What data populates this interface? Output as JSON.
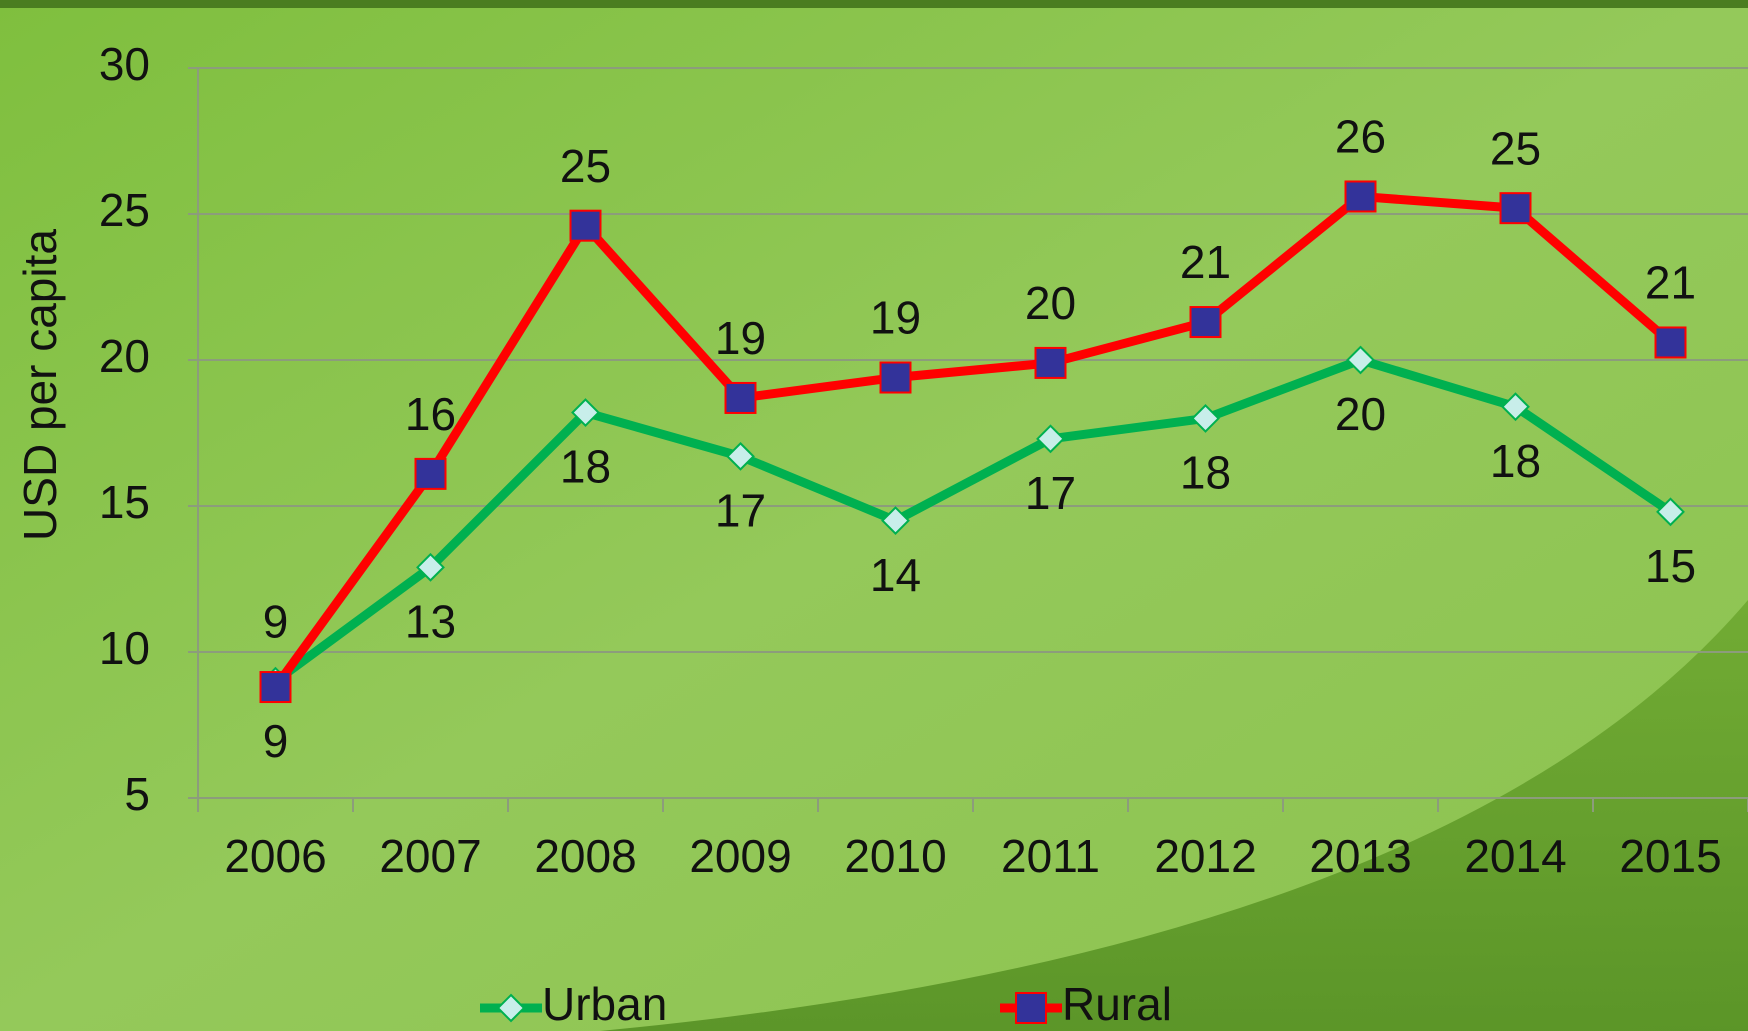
{
  "chart_data": {
    "type": "line",
    "y_axis_label": "USD per capita",
    "categories": [
      "2006",
      "2007",
      "2008",
      "2009",
      "2010",
      "2011",
      "2012",
      "2013",
      "2014",
      "2015"
    ],
    "series": [
      {
        "name": "Urban",
        "color": "#00b050",
        "marker_color": "#c8eeea",
        "values": [
          9.0,
          12.9,
          18.2,
          16.7,
          14.5,
          17.3,
          18.0,
          20.0,
          18.4,
          14.8
        ],
        "value_labels": [
          "9",
          "13",
          "18",
          "17",
          "14",
          "17",
          "18",
          "20",
          "18",
          "15"
        ]
      },
      {
        "name": "Rural",
        "color": "#ff0000",
        "marker_color": "#33339a",
        "values": [
          8.8,
          16.1,
          24.6,
          18.7,
          19.4,
          19.9,
          21.3,
          25.6,
          25.2,
          20.6
        ],
        "value_labels": [
          "9",
          "16",
          "25",
          "19",
          "19",
          "20",
          "21",
          "26",
          "25",
          "21"
        ]
      }
    ],
    "ylim": [
      5,
      30
    ],
    "yticks": [
      5,
      10,
      15,
      20,
      25,
      30
    ],
    "grid": true
  }
}
